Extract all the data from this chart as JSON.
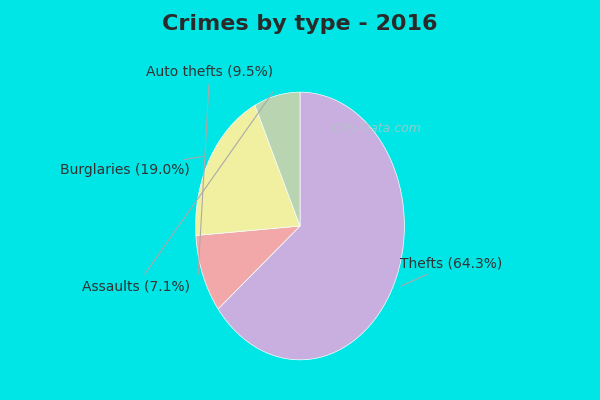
{
  "title": "Crimes by type - 2016",
  "slices": [
    {
      "label": "Thefts",
      "pct": 64.3,
      "color": "#c9aee0"
    },
    {
      "label": "Auto thefts",
      "pct": 9.5,
      "color": "#f2a8a8"
    },
    {
      "label": "Burglaries",
      "pct": 19.0,
      "color": "#f0f0a0"
    },
    {
      "label": "Assaults",
      "pct": 7.1,
      "color": "#b8d4b0"
    }
  ],
  "bg_color_top": "#00e5e5",
  "bg_color_inner": "#e0f0e8",
  "title_fontsize": 16,
  "label_fontsize": 10,
  "watermark": "City-Data.com",
  "title_color": "#2a2a2a",
  "label_color": "#333333"
}
